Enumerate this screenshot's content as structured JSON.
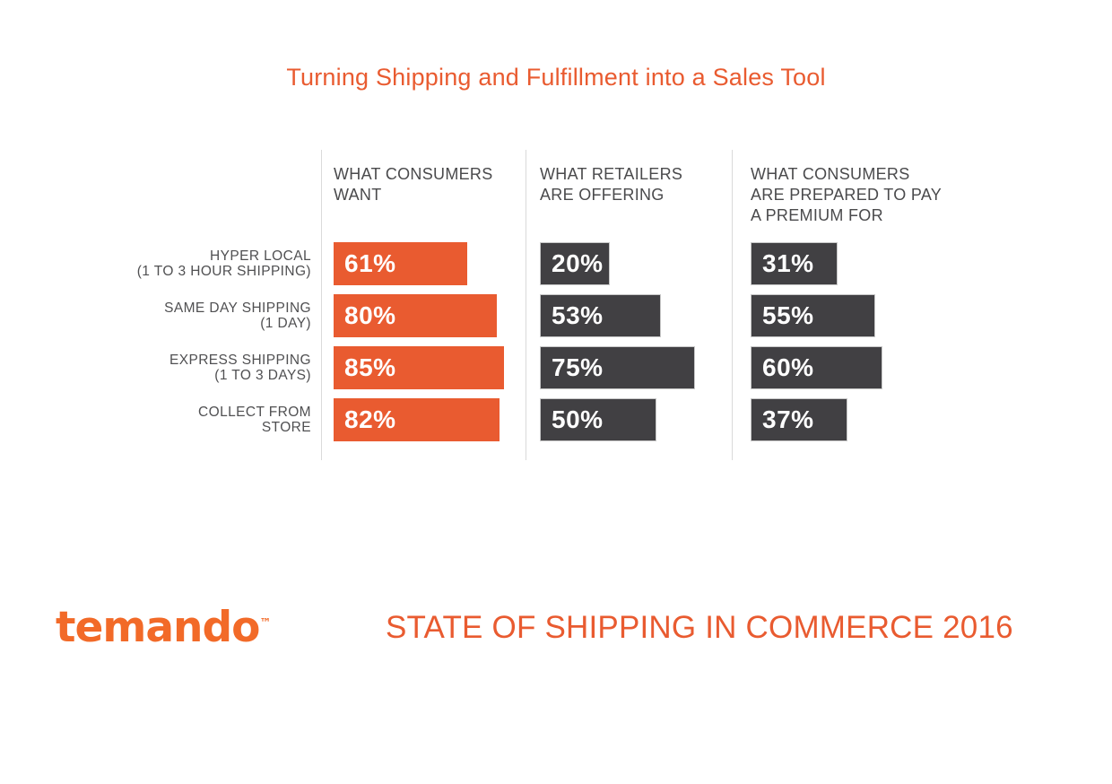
{
  "title": "Turning Shipping and Fulfillment into a Sales Tool",
  "chart_data": {
    "type": "bar",
    "orientation": "horizontal",
    "unit": "%",
    "xlim": [
      0,
      100
    ],
    "value_label_position": "inside-left",
    "grid": false,
    "legend_position": "column-headers-top",
    "categories": [
      {
        "lines": [
          "HYPER LOCAL",
          "(1 TO 3 HOUR SHIPPING)"
        ]
      },
      {
        "lines": [
          "SAME DAY SHIPPING",
          "(1 DAY)"
        ]
      },
      {
        "lines": [
          "EXPRESS SHIPPING",
          "(1 TO 3 DAYS)"
        ]
      },
      {
        "lines": [
          "COLLECT FROM",
          "STORE"
        ]
      }
    ],
    "series": [
      {
        "name": "WHAT CONSUMERS WANT",
        "header_lines": [
          "WHAT CONSUMERS",
          "WANT"
        ],
        "style": "orange",
        "color": "#E95B30",
        "values": [
          61,
          80,
          85,
          82
        ]
      },
      {
        "name": "WHAT RETAILERS ARE OFFERING",
        "header_lines": [
          "WHAT RETAILERS",
          "ARE OFFERING"
        ],
        "style": "dark",
        "color": "#414043",
        "values": [
          20,
          53,
          75,
          50
        ]
      },
      {
        "name": "WHAT CONSUMERS ARE PREPARED TO PAY A PREMIUM FOR",
        "header_lines": [
          "WHAT CONSUMERS",
          "ARE PREPARED TO PAY",
          "A PREMIUM FOR"
        ],
        "style": "dark",
        "color": "#414043",
        "values": [
          31,
          55,
          60,
          37
        ]
      }
    ]
  },
  "footer": {
    "logo_text": "temando",
    "logo_trademark": "™",
    "caption": "STATE OF SHIPPING IN COMMERCE 2016"
  },
  "colors": {
    "accent_orange": "#E95B30",
    "logo_orange": "#F26A28",
    "bar_dark": "#414043",
    "bar_dark_border": "#C8C8C8",
    "heading_text": "#4A4A4C",
    "label_text": "#505052",
    "divider": "#DADADA",
    "background": "#FFFFFF",
    "bar_value_text": "#FFFFFF"
  }
}
